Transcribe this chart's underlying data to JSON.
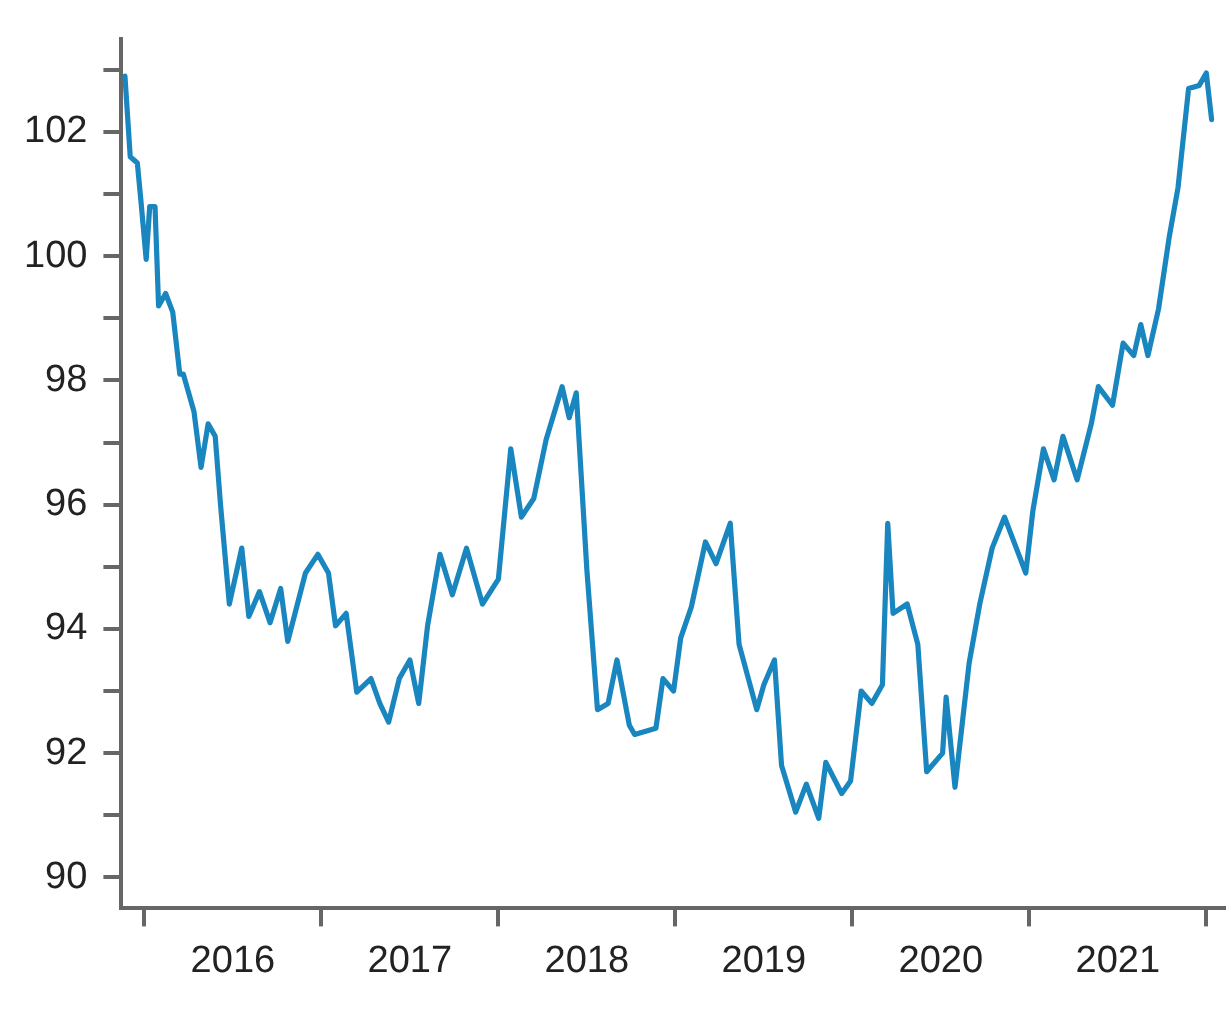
{
  "chart_data": {
    "type": "line",
    "x": [
      2015.89,
      2015.92,
      2015.96,
      2015.98,
      2016.01,
      2016.03,
      2016.06,
      2016.08,
      2016.12,
      2016.16,
      2016.2,
      2016.22,
      2016.28,
      2016.32,
      2016.36,
      2016.4,
      2016.43,
      2016.48,
      2016.55,
      2016.59,
      2016.65,
      2016.71,
      2016.77,
      2016.81,
      2016.91,
      2016.98,
      2017.04,
      2017.08,
      2017.14,
      2017.2,
      2017.28,
      2017.33,
      2017.38,
      2017.44,
      2017.5,
      2017.55,
      2017.6,
      2017.67,
      2017.74,
      2017.82,
      2017.91,
      2018.0,
      2018.07,
      2018.13,
      2018.2,
      2018.27,
      2018.36,
      2018.4,
      2018.44,
      2018.5,
      2018.56,
      2018.62,
      2018.67,
      2018.74,
      2018.77,
      2018.89,
      2018.93,
      2018.99,
      2019.03,
      2019.09,
      2019.17,
      2019.23,
      2019.31,
      2019.36,
      2019.46,
      2019.5,
      2019.56,
      2019.6,
      2019.68,
      2019.74,
      2019.81,
      2019.85,
      2019.94,
      2019.99,
      2020.05,
      2020.11,
      2020.17,
      2020.2,
      2020.23,
      2020.31,
      2020.37,
      2020.42,
      2020.51,
      2020.53,
      2020.58,
      2020.66,
      2020.72,
      2020.79,
      2020.86,
      2020.94,
      2020.98,
      2021.02,
      2021.08,
      2021.14,
      2021.19,
      2021.27,
      2021.35,
      2021.39,
      2021.47,
      2021.53,
      2021.59,
      2021.63,
      2021.67,
      2021.73,
      2021.79,
      2021.84,
      2021.9,
      2021.96,
      2022.0,
      2022.03
    ],
    "series": [
      {
        "color": "#1a86bf",
        "values": [
          102.9,
          101.6,
          101.5,
          100.9,
          99.95,
          100.8,
          100.8,
          99.2,
          99.4,
          99.1,
          98.1,
          98.1,
          97.5,
          96.6,
          97.3,
          97.1,
          96.0,
          94.4,
          95.3,
          94.2,
          94.6,
          94.1,
          94.65,
          93.8,
          94.9,
          95.2,
          94.9,
          94.05,
          94.25,
          92.98,
          93.2,
          92.8,
          92.5,
          93.2,
          93.5,
          92.8,
          94.05,
          95.2,
          94.55,
          95.3,
          94.4,
          94.8,
          96.9,
          95.8,
          96.1,
          97.05,
          97.9,
          97.4,
          97.8,
          94.95,
          92.7,
          92.8,
          93.5,
          92.45,
          92.3,
          92.4,
          93.2,
          93.0,
          93.85,
          94.35,
          95.4,
          95.05,
          95.7,
          93.75,
          92.7,
          93.1,
          93.5,
          91.8,
          91.05,
          91.5,
          90.95,
          91.85,
          91.35,
          91.55,
          93.0,
          92.8,
          93.1,
          95.7,
          94.25,
          94.4,
          93.75,
          91.7,
          92.0,
          92.9,
          91.45,
          93.45,
          94.4,
          95.3,
          95.8,
          95.2,
          94.9,
          95.9,
          96.9,
          96.4,
          97.1,
          96.4,
          97.3,
          97.9,
          97.6,
          98.6,
          98.4,
          98.9,
          98.4,
          99.15,
          100.3,
          101.1,
          102.7,
          102.75,
          102.95,
          102.2
        ]
      }
    ],
    "xlim": [
      2015.87,
      2022.1
    ],
    "xticks": [
      {
        "value": 2016,
        "label": null
      },
      {
        "value": 2016.5,
        "label": "2016"
      },
      {
        "value": 2017,
        "label": null
      },
      {
        "value": 2017.5,
        "label": "2017"
      },
      {
        "value": 2018,
        "label": null
      },
      {
        "value": 2018.5,
        "label": "2018"
      },
      {
        "value": 2019,
        "label": null
      },
      {
        "value": 2019.5,
        "label": "2019"
      },
      {
        "value": 2020,
        "label": null
      },
      {
        "value": 2020.5,
        "label": "2020"
      },
      {
        "value": 2021,
        "label": null
      },
      {
        "value": 2021.5,
        "label": "2021"
      },
      {
        "value": 2022,
        "label": null
      }
    ],
    "ylim": [
      89.5,
      103.5
    ],
    "yticks": [
      90,
      {
        "value": 91,
        "label": null
      },
      92,
      {
        "value": 93,
        "label": null
      },
      94,
      {
        "value": 95,
        "label": null
      },
      96,
      {
        "value": 97,
        "label": null
      },
      98,
      {
        "value": 99,
        "label": null
      },
      100,
      {
        "value": 101,
        "label": null
      },
      102,
      {
        "value": 103,
        "label": null
      }
    ],
    "grid": false,
    "legend": false,
    "marker": "none",
    "line_style": "solid"
  }
}
